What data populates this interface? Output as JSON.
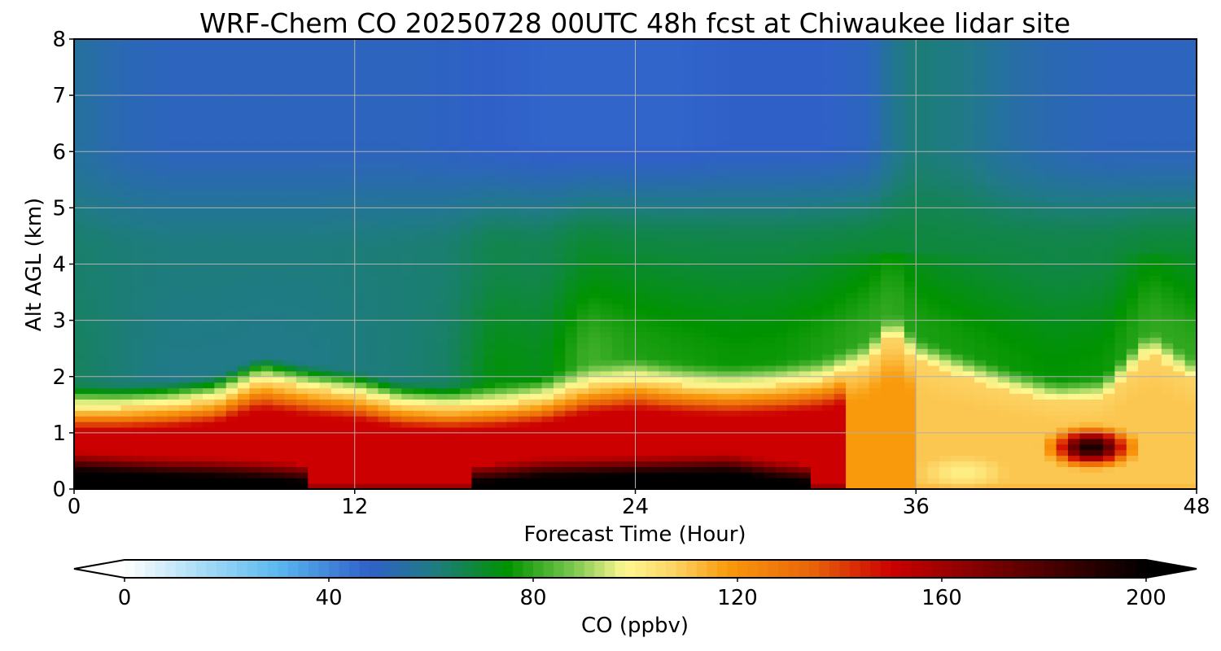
{
  "chart_data": {
    "type": "heatmap",
    "title": "WRF-Chem CO  20250728 00UTC 48h fcst at Chiwaukee lidar site",
    "xlabel": "Forecast Time (Hour)",
    "ylabel": "Alt AGL (km)",
    "xlim": [
      0,
      48
    ],
    "ylim": [
      0,
      8
    ],
    "x_ticks": [
      "0",
      "12",
      "24",
      "36",
      "48"
    ],
    "y_ticks": [
      "0",
      "1",
      "2",
      "3",
      "4",
      "5",
      "6",
      "7",
      "8"
    ],
    "grid": true,
    "colorbar": {
      "label": "CO  (ppbv)",
      "range": [
        0,
        200
      ],
      "extend": "both",
      "ticks": [
        "0",
        "40",
        "80",
        "120",
        "160",
        "200"
      ],
      "color_stops": [
        {
          "value": 0,
          "color": "#ffffff"
        },
        {
          "value": 15,
          "color": "#a8dcf6"
        },
        {
          "value": 30,
          "color": "#5ab8f0"
        },
        {
          "value": 48,
          "color": "#2f60c8"
        },
        {
          "value": 60,
          "color": "#207a88"
        },
        {
          "value": 75,
          "color": "#009300"
        },
        {
          "value": 88,
          "color": "#7cc850"
        },
        {
          "value": 98,
          "color": "#fff890"
        },
        {
          "value": 108,
          "color": "#fcd262"
        },
        {
          "value": 118,
          "color": "#f99a0c"
        },
        {
          "value": 135,
          "color": "#e8620a"
        },
        {
          "value": 150,
          "color": "#cc0000"
        },
        {
          "value": 168,
          "color": "#7e0000"
        },
        {
          "value": 185,
          "color": "#3a0000"
        },
        {
          "value": 200,
          "color": "#000000"
        }
      ]
    },
    "profiles": [
      {
        "x": 0,
        "pbl": 1.45,
        "core": 0.55,
        "free": 65,
        "upper": 56
      },
      {
        "x": 2,
        "pbl": 1.45,
        "core": 0.45,
        "free": 62,
        "upper": 52
      },
      {
        "x": 4,
        "pbl": 1.5,
        "core": 0.35,
        "free": 60,
        "upper": 50
      },
      {
        "x": 6,
        "pbl": 1.6,
        "core": 0.3,
        "free": 60,
        "upper": 50
      },
      {
        "x": 8,
        "pbl": 1.95,
        "core": 0.2,
        "free": 60,
        "upper": 50
      },
      {
        "x": 10,
        "pbl": 1.8,
        "core": 0.05,
        "free": 60,
        "upper": 50
      },
      {
        "x": 12,
        "pbl": 1.7,
        "core": 0.0,
        "free": 61,
        "upper": 50
      },
      {
        "x": 14,
        "pbl": 1.5,
        "core": 0.0,
        "free": 62,
        "upper": 50
      },
      {
        "x": 16,
        "pbl": 1.45,
        "core": 0.0,
        "free": 64,
        "upper": 49
      },
      {
        "x": 18,
        "pbl": 1.5,
        "core": 0.1,
        "free": 74,
        "upper": 48
      },
      {
        "x": 20,
        "pbl": 1.6,
        "core": 0.3,
        "free": 72,
        "upper": 47
      },
      {
        "x": 22,
        "pbl": 1.85,
        "core": 0.35,
        "free": 82,
        "upper": 47
      },
      {
        "x": 24,
        "pbl": 1.95,
        "core": 0.4,
        "free": 78,
        "upper": 47
      },
      {
        "x": 26,
        "pbl": 1.85,
        "core": 0.45,
        "free": 77,
        "upper": 47
      },
      {
        "x": 28,
        "pbl": 1.8,
        "core": 0.5,
        "free": 76,
        "upper": 48
      },
      {
        "x": 30,
        "pbl": 1.85,
        "core": 0.2,
        "free": 76,
        "upper": 48
      },
      {
        "x": 32,
        "pbl": 1.95,
        "core": 0.0,
        "free": 78,
        "upper": 48
      },
      {
        "x": 34,
        "pbl": 2.25,
        "core": 0.0,
        "free": 80,
        "upper": 50
      },
      {
        "x": 35,
        "pbl": 2.8,
        "core": 0.0,
        "free": 80,
        "upper": 58
      },
      {
        "x": 36,
        "pbl": 2.3,
        "core": 0.0,
        "free": 78,
        "upper": 62
      },
      {
        "x": 38,
        "pbl": 2.0,
        "core": 0.0,
        "free": 77,
        "upper": 60
      },
      {
        "x": 40,
        "pbl": 1.75,
        "core": 0.0,
        "free": 76,
        "upper": 55
      },
      {
        "x": 42,
        "pbl": 1.55,
        "core": 0.0,
        "free": 75,
        "upper": 52
      },
      {
        "x": 44,
        "pbl": 1.6,
        "core": 0.0,
        "free": 76,
        "upper": 50
      },
      {
        "x": 46,
        "pbl": 2.45,
        "core": 0.0,
        "free": 80,
        "upper": 50
      },
      {
        "x": 48,
        "pbl": 1.9,
        "core": 0.0,
        "free": 80,
        "upper": 50
      }
    ],
    "near_surface_max": {
      "x": 43.5,
      "y": 0.75,
      "value": 195
    },
    "near_surface_min": {
      "x": 38,
      "y": 0.3,
      "value": 100
    }
  }
}
